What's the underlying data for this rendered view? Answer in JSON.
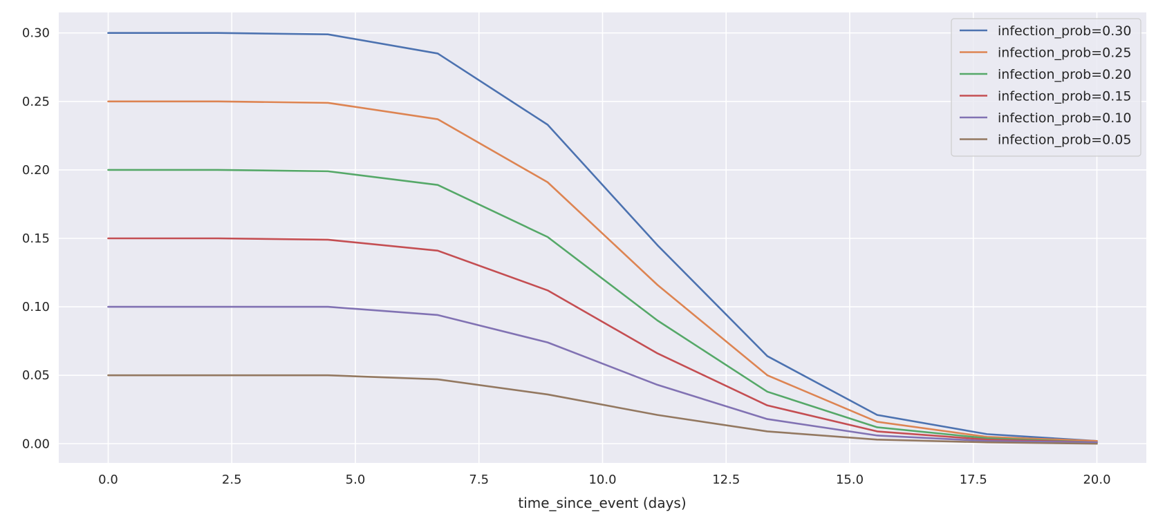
{
  "chart_data": {
    "type": "line",
    "title": "",
    "xlabel": "time_since_event (days)",
    "ylabel": "",
    "xlim": [
      -1.0,
      21.0
    ],
    "ylim": [
      -0.014,
      0.315
    ],
    "grid": true,
    "legend_position": "top-right",
    "x": [
      0.0,
      2.222,
      4.444,
      6.667,
      8.889,
      11.111,
      13.333,
      15.556,
      17.778,
      20.0
    ],
    "xticks": [
      "0.0",
      "2.5",
      "5.0",
      "7.5",
      "10.0",
      "12.5",
      "15.0",
      "17.5",
      "20.0"
    ],
    "yticks": [
      "0.00",
      "0.05",
      "0.10",
      "0.15",
      "0.20",
      "0.25",
      "0.30"
    ],
    "series": [
      {
        "name": "infection_prob=0.30",
        "color": "#4c72b0",
        "values": [
          0.3,
          0.3,
          0.299,
          0.285,
          0.233,
          0.145,
          0.064,
          0.021,
          0.007,
          0.002
        ]
      },
      {
        "name": "infection_prob=0.25",
        "color": "#dd8452",
        "values": [
          0.25,
          0.25,
          0.249,
          0.237,
          0.191,
          0.116,
          0.05,
          0.016,
          0.005,
          0.002
        ]
      },
      {
        "name": "infection_prob=0.20",
        "color": "#55a868",
        "values": [
          0.2,
          0.2,
          0.199,
          0.189,
          0.151,
          0.09,
          0.038,
          0.012,
          0.004,
          0.001
        ]
      },
      {
        "name": "infection_prob=0.15",
        "color": "#c44e52",
        "values": [
          0.15,
          0.15,
          0.149,
          0.141,
          0.112,
          0.066,
          0.028,
          0.009,
          0.003,
          0.001
        ]
      },
      {
        "name": "infection_prob=0.10",
        "color": "#8172b3",
        "values": [
          0.1,
          0.1,
          0.1,
          0.094,
          0.074,
          0.043,
          0.018,
          0.006,
          0.002,
          0.001
        ]
      },
      {
        "name": "infection_prob=0.05",
        "color": "#937860",
        "values": [
          0.05,
          0.05,
          0.05,
          0.047,
          0.036,
          0.021,
          0.009,
          0.003,
          0.001,
          0.0
        ]
      }
    ],
    "colors": {
      "plot_background": "#eaeaf2",
      "grid": "#ffffff",
      "legend_background": "#eaeaf2",
      "legend_border": "#cccccc"
    }
  }
}
